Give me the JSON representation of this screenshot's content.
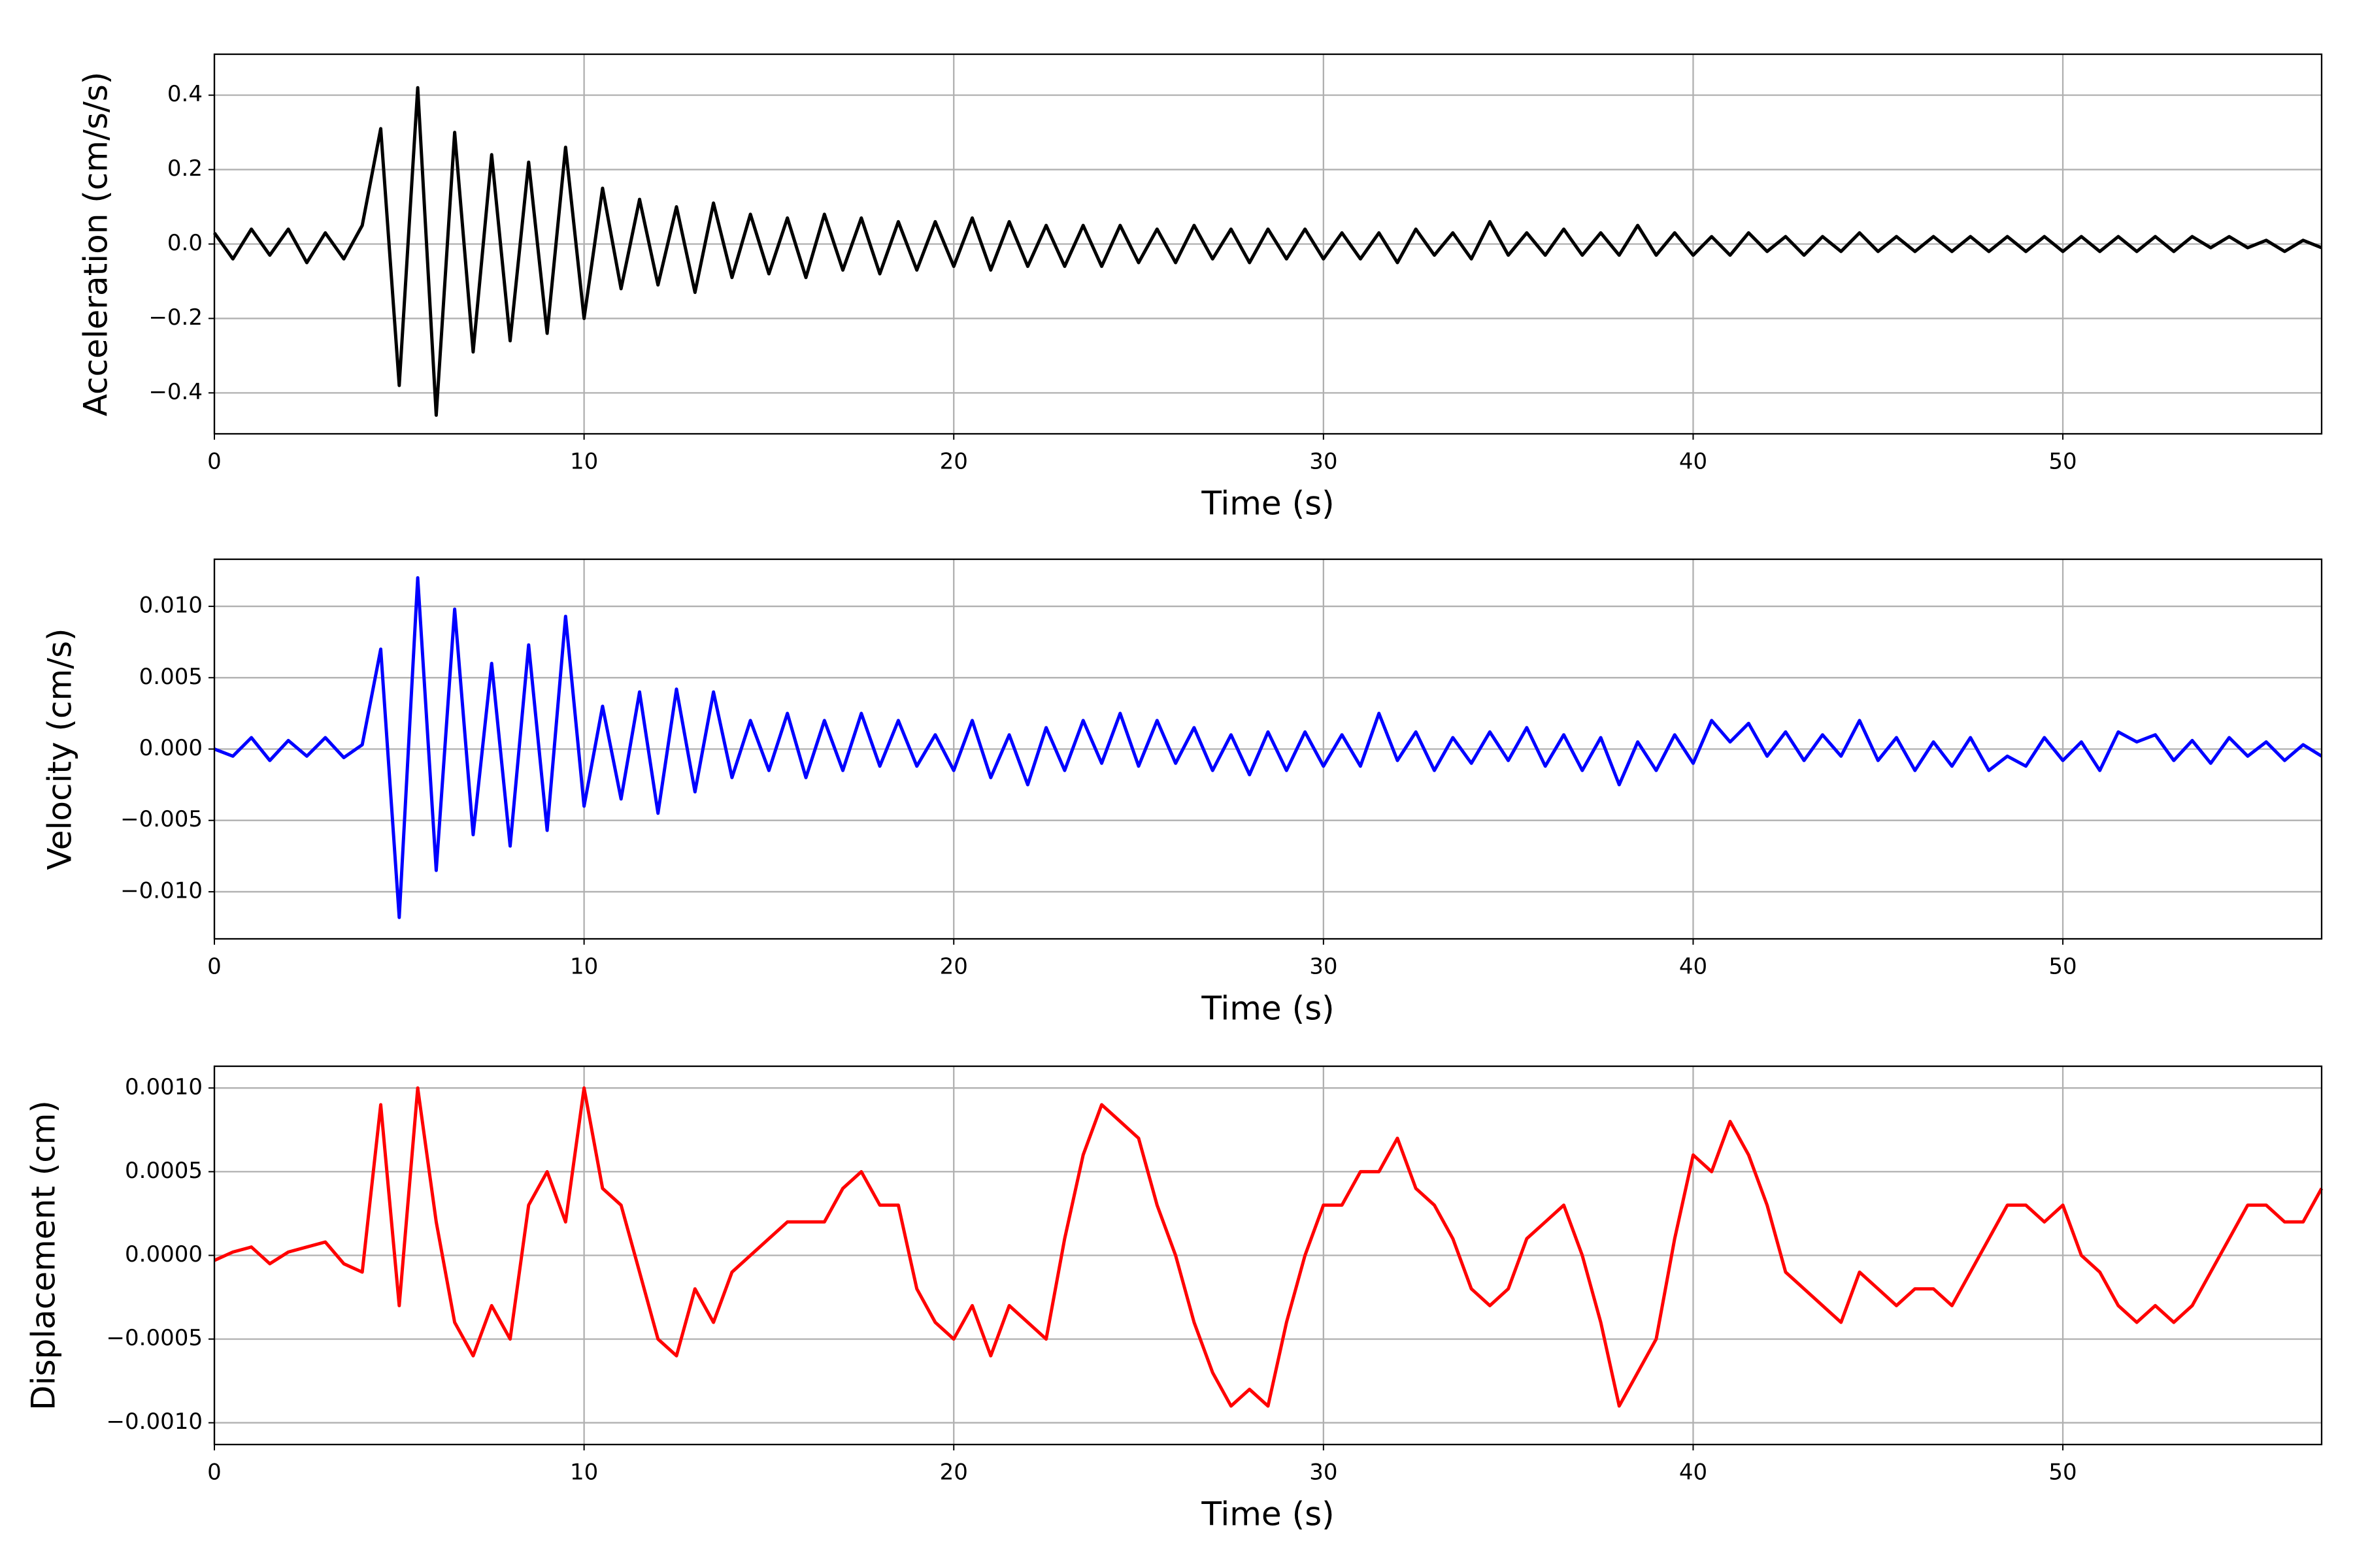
{
  "chart_data": [
    {
      "type": "line",
      "xlabel": "Time (s)",
      "ylabel": "Acceleration (cm/s/s)",
      "color": "#000000",
      "grid": true,
      "xlim": [
        0,
        57
      ],
      "xticks": [
        0,
        10,
        20,
        30,
        40,
        50
      ],
      "ylim": [
        -0.51,
        0.51
      ],
      "yticks": [
        {
          "value": -0.4,
          "label": "−0.4"
        },
        {
          "value": -0.2,
          "label": "−0.2"
        },
        {
          "value": 0,
          "label": "0.0"
        },
        0.2,
        0.4
      ],
      "x": [
        0,
        0.5,
        1,
        1.5,
        2,
        2.5,
        3,
        3.5,
        4,
        4.5,
        5,
        5.5,
        6,
        6.5,
        7,
        7.5,
        8,
        8.5,
        9,
        9.5,
        10,
        10.5,
        11,
        11.5,
        12,
        12.5,
        13,
        13.5,
        14,
        14.5,
        15,
        15.5,
        16,
        16.5,
        17,
        17.5,
        18,
        18.5,
        19,
        19.5,
        20,
        20.5,
        21,
        21.5,
        22,
        22.5,
        23,
        23.5,
        24,
        24.5,
        25,
        25.5,
        26,
        26.5,
        27,
        27.5,
        28,
        28.5,
        29,
        29.5,
        30,
        30.5,
        31,
        31.5,
        32,
        32.5,
        33,
        33.5,
        34,
        34.5,
        35,
        35.5,
        36,
        36.5,
        37,
        37.5,
        38,
        38.5,
        39,
        39.5,
        40,
        40.5,
        41,
        41.5,
        42,
        42.5,
        43,
        43.5,
        44,
        44.5,
        45,
        45.5,
        46,
        46.5,
        47,
        47.5,
        48,
        48.5,
        49,
        49.5,
        50,
        50.5,
        51,
        51.5,
        52,
        52.5,
        53,
        53.5,
        54,
        54.5,
        55,
        55.5,
        56,
        56.5,
        57
      ],
      "values": [
        0.03,
        -0.04,
        0.04,
        -0.03,
        0.04,
        -0.05,
        0.03,
        -0.04,
        0.05,
        0.31,
        -0.38,
        0.42,
        -0.46,
        0.3,
        -0.29,
        0.24,
        -0.26,
        0.22,
        -0.24,
        0.26,
        -0.2,
        0.15,
        -0.12,
        0.12,
        -0.11,
        0.1,
        -0.13,
        0.11,
        -0.09,
        0.08,
        -0.08,
        0.07,
        -0.09,
        0.08,
        -0.07,
        0.07,
        -0.08,
        0.06,
        -0.07,
        0.06,
        -0.06,
        0.07,
        -0.07,
        0.06,
        -0.06,
        0.05,
        -0.06,
        0.05,
        -0.06,
        0.05,
        -0.05,
        0.04,
        -0.05,
        0.05,
        -0.04,
        0.04,
        -0.05,
        0.04,
        -0.04,
        0.04,
        -0.04,
        0.03,
        -0.04,
        0.03,
        -0.05,
        0.04,
        -0.03,
        0.03,
        -0.04,
        0.06,
        -0.03,
        0.03,
        -0.03,
        0.04,
        -0.03,
        0.03,
        -0.03,
        0.05,
        -0.03,
        0.03,
        -0.03,
        0.02,
        -0.03,
        0.03,
        -0.02,
        0.02,
        -0.03,
        0.02,
        -0.02,
        0.03,
        -0.02,
        0.02,
        -0.02,
        0.02,
        -0.02,
        0.02,
        -0.02,
        0.02,
        -0.02,
        0.02,
        -0.02,
        0.02,
        -0.02,
        0.02,
        -0.02,
        0.02,
        -0.02,
        0.02,
        -0.01,
        0.02,
        -0.01,
        0.01,
        -0.02,
        0.01,
        -0.01
      ]
    },
    {
      "type": "line",
      "xlabel": "Time (s)",
      "ylabel": "Velocity (cm/s)",
      "color": "#0000ff",
      "grid": true,
      "xlim": [
        0,
        57
      ],
      "xticks": [
        0,
        10,
        20,
        30,
        40,
        50
      ],
      "ylim": [
        -0.0133,
        0.0133
      ],
      "yticks": [
        {
          "value": -0.01,
          "label": "−0.010"
        },
        {
          "value": -0.005,
          "label": "−0.005"
        },
        {
          "value": 0,
          "label": "0.000"
        },
        0.005,
        {
          "value": 0.01,
          "label": "0.010"
        }
      ],
      "x": [
        0,
        0.5,
        1,
        1.5,
        2,
        2.5,
        3,
        3.5,
        4,
        4.5,
        5,
        5.5,
        6,
        6.5,
        7,
        7.5,
        8,
        8.5,
        9,
        9.5,
        10,
        10.5,
        11,
        11.5,
        12,
        12.5,
        13,
        13.5,
        14,
        14.5,
        15,
        15.5,
        16,
        16.5,
        17,
        17.5,
        18,
        18.5,
        19,
        19.5,
        20,
        20.5,
        21,
        21.5,
        22,
        22.5,
        23,
        23.5,
        24,
        24.5,
        25,
        25.5,
        26,
        26.5,
        27,
        27.5,
        28,
        28.5,
        29,
        29.5,
        30,
        30.5,
        31,
        31.5,
        32,
        32.5,
        33,
        33.5,
        34,
        34.5,
        35,
        35.5,
        36,
        36.5,
        37,
        37.5,
        38,
        38.5,
        39,
        39.5,
        40,
        40.5,
        41,
        41.5,
        42,
        42.5,
        43,
        43.5,
        44,
        44.5,
        45,
        45.5,
        46,
        46.5,
        47,
        47.5,
        48,
        48.5,
        49,
        49.5,
        50,
        50.5,
        51,
        51.5,
        52,
        52.5,
        53,
        53.5,
        54,
        54.5,
        55,
        55.5,
        56,
        56.5,
        57
      ],
      "values": [
        0,
        -0.0005,
        0.0008,
        -0.0008,
        0.0006,
        -0.0005,
        0.0008,
        -0.0006,
        0.0003,
        0.007,
        -0.0118,
        0.012,
        -0.0085,
        0.0098,
        -0.006,
        0.006,
        -0.0068,
        0.0073,
        -0.0057,
        0.0093,
        -0.004,
        0.003,
        -0.0035,
        0.004,
        -0.0045,
        0.0042,
        -0.003,
        0.004,
        -0.002,
        0.002,
        -0.0015,
        0.0025,
        -0.002,
        0.002,
        -0.0015,
        0.0025,
        -0.0012,
        0.002,
        -0.0012,
        0.001,
        -0.0015,
        0.002,
        -0.002,
        0.001,
        -0.0025,
        0.0015,
        -0.0015,
        0.002,
        -0.001,
        0.0025,
        -0.0012,
        0.002,
        -0.001,
        0.0015,
        -0.0015,
        0.001,
        -0.0018,
        0.0012,
        -0.0015,
        0.0012,
        -0.0012,
        0.001,
        -0.0012,
        0.0025,
        -0.0008,
        0.0012,
        -0.0015,
        0.0008,
        -0.001,
        0.0012,
        -0.0008,
        0.0015,
        -0.0012,
        0.001,
        -0.0015,
        0.0008,
        -0.0025,
        0.0005,
        -0.0015,
        0.001,
        -0.001,
        0.002,
        0.0005,
        0.0018,
        -0.0005,
        0.0012,
        -0.0008,
        0.001,
        -0.0005,
        0.002,
        -0.0008,
        0.0008,
        -0.0015,
        0.0005,
        -0.0012,
        0.0008,
        -0.0015,
        -0.0005,
        -0.0012,
        0.0008,
        -0.0008,
        0.0005,
        -0.0015,
        0.0012,
        0.0005,
        0.001,
        -0.0008,
        0.0006,
        -0.001,
        0.0008,
        -0.0005,
        0.0005,
        -0.0008,
        0.0003,
        -0.0005
      ]
    },
    {
      "type": "line",
      "xlabel": "Time (s)",
      "ylabel": "Displacement (cm)",
      "color": "#ff0000",
      "grid": true,
      "xlim": [
        0,
        57
      ],
      "xticks": [
        0,
        10,
        20,
        30,
        40,
        50
      ],
      "ylim": [
        -0.00113,
        0.00113
      ],
      "yticks": [
        {
          "value": -0.001,
          "label": "−0.0010"
        },
        {
          "value": -0.0005,
          "label": "−0.0005"
        },
        {
          "value": 0,
          "label": "0.0000"
        },
        0.0005,
        {
          "value": 0.001,
          "label": "0.0010"
        }
      ],
      "x": [
        0,
        0.5,
        1,
        1.5,
        2,
        2.5,
        3,
        3.5,
        4,
        4.5,
        5,
        5.5,
        6,
        6.5,
        7,
        7.5,
        8,
        8.5,
        9,
        9.5,
        10,
        10.5,
        11,
        11.5,
        12,
        12.5,
        13,
        13.5,
        14,
        14.5,
        15,
        15.5,
        16,
        16.5,
        17,
        17.5,
        18,
        18.5,
        19,
        19.5,
        20,
        20.5,
        21,
        21.5,
        22,
        22.5,
        23,
        23.5,
        24,
        24.5,
        25,
        25.5,
        26,
        26.5,
        27,
        27.5,
        28,
        28.5,
        29,
        29.5,
        30,
        30.5,
        31,
        31.5,
        32,
        32.5,
        33,
        33.5,
        34,
        34.5,
        35,
        35.5,
        36,
        36.5,
        37,
        37.5,
        38,
        38.5,
        39,
        39.5,
        40,
        40.5,
        41,
        41.5,
        42,
        42.5,
        43,
        43.5,
        44,
        44.5,
        45,
        45.5,
        46,
        46.5,
        47,
        47.5,
        48,
        48.5,
        49,
        49.5,
        50,
        50.5,
        51,
        51.5,
        52,
        52.5,
        53,
        53.5,
        54,
        54.5,
        55,
        55.5,
        56,
        56.5,
        57
      ],
      "values": [
        -3e-05,
        2e-05,
        5e-05,
        -5e-05,
        2e-05,
        5e-05,
        8e-05,
        -5e-05,
        -0.0001,
        0.0009,
        -0.0003,
        0.001,
        0.0002,
        -0.0004,
        -0.0006,
        -0.0003,
        -0.0005,
        0.0003,
        0.0005,
        0.0002,
        0.001,
        0.0004,
        0.0003,
        -0.0001,
        -0.0005,
        -0.0006,
        -0.0002,
        -0.0004,
        -0.0001,
        0,
        0.0001,
        0.0002,
        0.0002,
        0.0002,
        0.0004,
        0.0005,
        0.0003,
        0.0003,
        -0.0002,
        -0.0004,
        -0.0005,
        -0.0003,
        -0.0006,
        -0.0003,
        -0.0004,
        -0.0005,
        0.0001,
        0.0006,
        0.0009,
        0.0008,
        0.0007,
        0.0003,
        0,
        -0.0004,
        -0.0007,
        -0.0009,
        -0.0008,
        -0.0009,
        -0.0004,
        0,
        0.0003,
        0.0003,
        0.0005,
        0.0005,
        0.0007,
        0.0004,
        0.0003,
        0.0001,
        -0.0002,
        -0.0003,
        -0.0002,
        0.0001,
        0.0002,
        0.0003,
        0,
        -0.0004,
        -0.0009,
        -0.0007,
        -0.0005,
        0.0001,
        0.0006,
        0.0005,
        0.0008,
        0.0006,
        0.0003,
        -0.0001,
        -0.0002,
        -0.0003,
        -0.0004,
        -0.0001,
        -0.0002,
        -0.0003,
        -0.0002,
        -0.0002,
        -0.0003,
        -0.0001,
        0.0001,
        0.0003,
        0.0003,
        0.0002,
        0.0003,
        0,
        -0.0001,
        -0.0003,
        -0.0004,
        -0.0003,
        -0.0004,
        -0.0003,
        -0.0001,
        0.0001,
        0.0003,
        0.0003,
        0.0002,
        0.0002,
        0.0004
      ]
    }
  ]
}
